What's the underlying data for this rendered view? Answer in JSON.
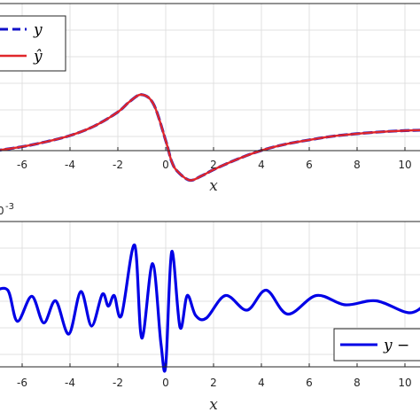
{
  "chart_data": [
    {
      "type": "line",
      "title": "",
      "xlabel": "x",
      "ylabel": "",
      "xlim": [
        -7.2,
        11.0
      ],
      "x_ticks": [
        "-6",
        "-4",
        "-2",
        "0",
        "2",
        "4",
        "6",
        "8",
        "10"
      ],
      "grid": true,
      "legend": "top-left",
      "series": [
        {
          "name": "y",
          "style": "dashed",
          "color": "#1010c8",
          "x": [
            -7.2,
            -6,
            -5,
            -4,
            -3,
            -2,
            -1.5,
            -1,
            -0.5,
            0,
            0.25,
            0.5,
            1,
            1.5,
            2,
            3,
            4,
            5,
            6,
            7,
            8,
            9,
            10,
            11
          ],
          "y": [
            -0.75,
            -0.68,
            -0.6,
            -0.5,
            -0.35,
            -0.12,
            0.05,
            0.16,
            0.0,
            -0.58,
            -0.92,
            -1.08,
            -1.22,
            -1.15,
            -1.05,
            -0.88,
            -0.74,
            -0.64,
            -0.57,
            -0.51,
            -0.47,
            -0.44,
            -0.42,
            -0.41
          ]
        },
        {
          "name": "ŷ",
          "style": "solid",
          "color": "#e0262a",
          "x": [
            -7.2,
            -6,
            -5,
            -4,
            -3,
            -2,
            -1.5,
            -1,
            -0.5,
            0,
            0.25,
            0.5,
            1,
            1.5,
            2,
            3,
            4,
            5,
            6,
            7,
            8,
            9,
            10,
            11
          ],
          "y": [
            -0.75,
            -0.68,
            -0.6,
            -0.5,
            -0.35,
            -0.12,
            0.05,
            0.16,
            0.0,
            -0.58,
            -0.92,
            -1.08,
            -1.22,
            -1.15,
            -1.05,
            -0.88,
            -0.74,
            -0.64,
            -0.57,
            -0.51,
            -0.47,
            -0.44,
            -0.42,
            -0.41
          ]
        }
      ]
    },
    {
      "type": "line",
      "title": "",
      "xlabel": "x",
      "ylabel": "",
      "y_exponent_base": "0",
      "y_exponent": "-3",
      "xlim": [
        -7.2,
        11.0
      ],
      "x_ticks": [
        "-6",
        "-4",
        "-2",
        "0",
        "2",
        "4",
        "6",
        "8",
        "10"
      ],
      "grid": true,
      "legend": "bottom-right",
      "series": [
        {
          "name": "y −",
          "style": "solid",
          "color": "#0000e6",
          "x": [
            -7.2,
            -6.6,
            -6.2,
            -5.6,
            -5.1,
            -4.6,
            -4.05,
            -3.55,
            -3.1,
            -2.65,
            -2.4,
            -2.15,
            -1.85,
            -1.3,
            -1.0,
            -0.55,
            -0.2,
            0.0,
            0.25,
            0.6,
            0.9,
            1.25,
            1.7,
            2.5,
            3.4,
            4.2,
            5.1,
            6.3,
            7.5,
            8.8,
            10.2,
            11.0
          ],
          "y": [
            0.3,
            0.35,
            -0.82,
            0.12,
            -0.88,
            -0.05,
            -1.3,
            0.3,
            -1.0,
            0.2,
            -0.25,
            0.15,
            -0.6,
            2.05,
            -1.45,
            1.35,
            -1.65,
            -2.5,
            1.8,
            -1.05,
            0.15,
            -0.6,
            -0.7,
            0.15,
            -0.4,
            0.35,
            -0.55,
            0.15,
            -0.2,
            -0.05,
            -0.5,
            -0.05
          ]
        }
      ]
    }
  ]
}
